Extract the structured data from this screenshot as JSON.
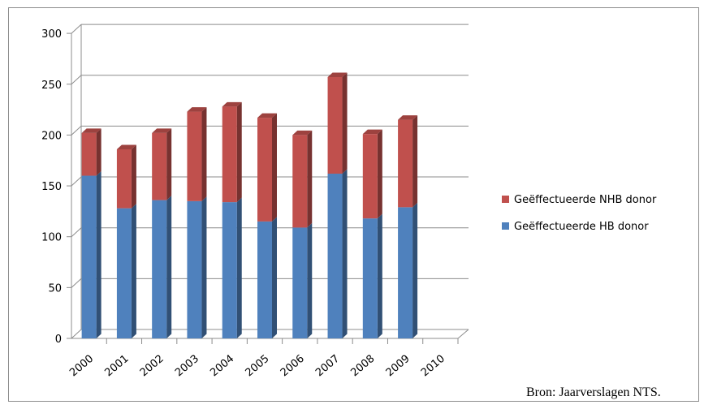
{
  "chart_data": {
    "type": "bar",
    "stacked": true,
    "three_d": true,
    "categories": [
      "2000",
      "2001",
      "2002",
      "2003",
      "2004",
      "2005",
      "2006",
      "2007",
      "2008",
      "2009",
      "2010"
    ],
    "series": [
      {
        "name": "Geëffectueerde HB donor",
        "color": "#4f81bd",
        "values": [
          160,
          128,
          136,
          135,
          134,
          115,
          109,
          162,
          118,
          129,
          null
        ]
      },
      {
        "name": "Geëffectueerde NHB donor",
        "color": "#c0504d",
        "values": [
          42,
          58,
          66,
          88,
          94,
          102,
          91,
          95,
          83,
          86,
          null
        ]
      }
    ],
    "yticks": [
      0,
      50,
      100,
      150,
      200,
      250,
      300
    ],
    "ylim": [
      0,
      300
    ],
    "grid": true,
    "legend_position": "right",
    "title": "",
    "xlabel": "",
    "ylabel": ""
  },
  "source_note": "Bron: Jaarverslagen NTS."
}
